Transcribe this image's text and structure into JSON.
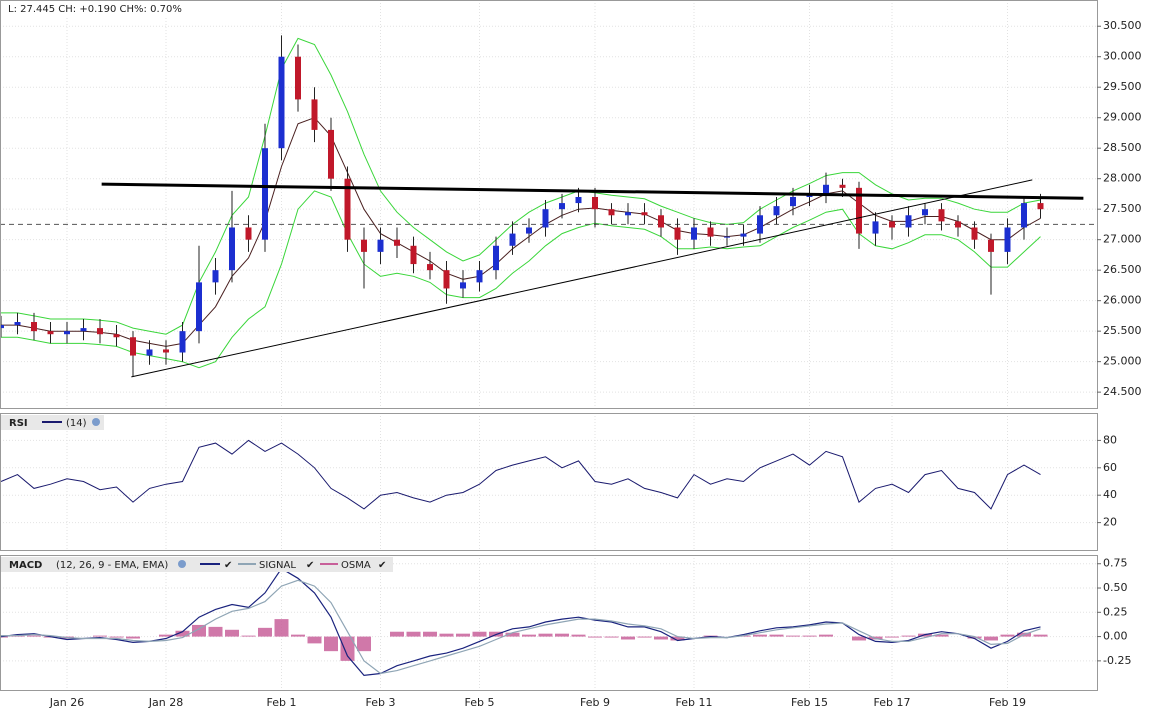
{
  "chart_data": [
    {
      "type": "candlestick",
      "header": "L: 27.445 CH: +0.190 CH%: 0.70%",
      "categories": [
        null,
        null,
        null,
        null,
        "Jan 26",
        null,
        null,
        null,
        null,
        null,
        "Jan 28",
        null,
        null,
        null,
        null,
        null,
        null,
        "Feb 1",
        null,
        null,
        null,
        null,
        null,
        "Feb 3",
        null,
        null,
        null,
        null,
        null,
        "Feb 5",
        null,
        null,
        null,
        null,
        null,
        null,
        "Feb 9",
        null,
        null,
        null,
        null,
        null,
        "Feb 11",
        null,
        null,
        null,
        null,
        null,
        null,
        "Feb 15",
        null,
        null,
        null,
        null,
        "Feb 17",
        null,
        null,
        null,
        null,
        null,
        null,
        "Feb 19",
        null,
        null
      ],
      "open": [
        25.55,
        25.6,
        25.65,
        25.5,
        25.45,
        25.5,
        25.55,
        25.45,
        25.4,
        25.1,
        25.2,
        25.15,
        25.5,
        26.3,
        26.5,
        27.2,
        27.0,
        28.5,
        30.0,
        29.3,
        28.8,
        28.0,
        27.0,
        26.8,
        27.0,
        26.9,
        26.6,
        26.5,
        26.2,
        26.3,
        26.5,
        26.9,
        27.1,
        27.2,
        27.5,
        27.6,
        27.7,
        27.5,
        27.4,
        27.45,
        27.4,
        27.2,
        27.0,
        27.2,
        27.05,
        27.05,
        27.1,
        27.4,
        27.55,
        27.7,
        27.75,
        27.9,
        27.85,
        27.1,
        27.3,
        27.2,
        27.4,
        27.5,
        27.3,
        27.2,
        27.0,
        26.8,
        27.2,
        27.6
      ],
      "high": [
        25.75,
        25.8,
        25.8,
        25.65,
        25.65,
        25.7,
        25.7,
        25.6,
        25.5,
        25.35,
        25.35,
        25.65,
        26.9,
        26.7,
        27.8,
        27.4,
        28.9,
        30.35,
        30.2,
        29.5,
        29.0,
        28.2,
        27.2,
        27.2,
        27.2,
        27.05,
        26.8,
        26.65,
        26.5,
        26.65,
        27.05,
        27.3,
        27.35,
        27.65,
        27.75,
        27.85,
        27.85,
        27.6,
        27.6,
        27.6,
        27.5,
        27.35,
        27.35,
        27.3,
        27.2,
        27.25,
        27.55,
        27.7,
        27.85,
        27.9,
        28.1,
        28.0,
        27.95,
        27.45,
        27.4,
        27.55,
        27.6,
        27.6,
        27.4,
        27.3,
        27.1,
        27.35,
        27.7,
        27.75
      ],
      "low": [
        25.4,
        25.45,
        25.35,
        25.3,
        25.3,
        25.35,
        25.3,
        25.25,
        24.75,
        24.95,
        24.95,
        25.0,
        25.3,
        26.1,
        26.3,
        26.8,
        26.8,
        28.3,
        29.1,
        28.6,
        27.8,
        26.8,
        26.2,
        26.6,
        26.7,
        26.45,
        26.35,
        25.95,
        26.05,
        26.15,
        26.35,
        26.75,
        26.95,
        27.05,
        27.35,
        27.45,
        27.2,
        27.25,
        27.25,
        27.25,
        27.05,
        26.75,
        26.85,
        26.9,
        26.9,
        26.9,
        26.95,
        27.25,
        27.4,
        27.55,
        27.6,
        27.7,
        26.85,
        26.9,
        27.0,
        27.05,
        27.25,
        27.15,
        27.05,
        26.85,
        26.1,
        26.6,
        27.0,
        27.35
      ],
      "close": [
        25.6,
        25.65,
        25.5,
        25.45,
        25.5,
        25.55,
        25.45,
        25.4,
        25.1,
        25.2,
        25.15,
        25.5,
        26.3,
        26.5,
        27.2,
        27.0,
        28.5,
        30.0,
        29.3,
        28.8,
        28.0,
        27.0,
        26.8,
        27.0,
        26.9,
        26.6,
        26.5,
        26.2,
        26.3,
        26.5,
        26.9,
        27.1,
        27.2,
        27.5,
        27.6,
        27.7,
        27.5,
        27.4,
        27.45,
        27.4,
        27.2,
        27.0,
        27.2,
        27.05,
        27.05,
        27.1,
        27.4,
        27.55,
        27.7,
        27.75,
        27.9,
        27.85,
        27.1,
        27.3,
        27.2,
        27.4,
        27.5,
        27.3,
        27.2,
        27.0,
        26.8,
        27.2,
        27.6,
        27.5
      ],
      "up_color": "#1c2fd0",
      "down_color": "#c0182a",
      "overlays": [
        {
          "color": "#3ad63a",
          "values": [
            25.8,
            25.8,
            25.75,
            25.7,
            25.7,
            25.7,
            25.68,
            25.65,
            25.55,
            25.5,
            25.45,
            25.6,
            26.3,
            26.8,
            27.4,
            27.7,
            28.7,
            29.8,
            30.3,
            30.2,
            29.7,
            29.1,
            28.4,
            27.8,
            27.45,
            27.2,
            27.0,
            26.8,
            26.65,
            26.75,
            27.0,
            27.25,
            27.45,
            27.6,
            27.7,
            27.8,
            27.77,
            27.73,
            27.7,
            27.67,
            27.55,
            27.45,
            27.35,
            27.28,
            27.25,
            27.28,
            27.5,
            27.65,
            27.8,
            27.92,
            28.05,
            28.1,
            28.1,
            27.9,
            27.75,
            27.65,
            27.68,
            27.68,
            27.6,
            27.5,
            27.45,
            27.45,
            27.6,
            27.65
          ]
        },
        {
          "color": "#3ad63a",
          "values": [
            25.4,
            25.4,
            25.35,
            25.3,
            25.3,
            25.3,
            25.28,
            25.25,
            25.15,
            25.1,
            25.05,
            25.0,
            24.9,
            25.0,
            25.4,
            25.7,
            25.9,
            26.6,
            27.5,
            27.8,
            27.7,
            27.1,
            26.6,
            26.4,
            26.45,
            26.4,
            26.3,
            26.1,
            26.05,
            26.05,
            26.2,
            26.45,
            26.65,
            26.9,
            27.1,
            27.2,
            27.27,
            27.23,
            27.2,
            27.17,
            27.05,
            26.85,
            26.85,
            26.88,
            26.85,
            26.88,
            26.9,
            27.05,
            27.2,
            27.32,
            27.45,
            27.5,
            27.1,
            26.9,
            26.85,
            26.95,
            27.08,
            27.08,
            27.0,
            26.8,
            26.55,
            26.55,
            26.8,
            27.05
          ]
        },
        {
          "color": "#4a2020",
          "values": [
            25.6,
            25.6,
            25.55,
            25.5,
            25.5,
            25.5,
            25.48,
            25.45,
            25.35,
            25.3,
            25.25,
            25.3,
            25.6,
            25.9,
            26.4,
            26.7,
            27.3,
            28.2,
            28.9,
            29.0,
            28.7,
            28.1,
            27.5,
            27.1,
            26.95,
            26.8,
            26.65,
            26.45,
            26.35,
            26.4,
            26.6,
            26.85,
            27.05,
            27.25,
            27.4,
            27.5,
            27.52,
            27.48,
            27.45,
            27.42,
            27.3,
            27.15,
            27.1,
            27.08,
            27.05,
            27.08,
            27.2,
            27.35,
            27.5,
            27.62,
            27.75,
            27.8,
            27.6,
            27.4,
            27.3,
            27.3,
            27.38,
            27.38,
            27.3,
            27.15,
            27.0,
            27.0,
            27.2,
            27.35
          ]
        }
      ],
      "trendlines": [
        {
          "x": [
            6.1,
            65.6
          ],
          "y": [
            27.91,
            27.68
          ],
          "width": 3
        },
        {
          "x": [
            7.9,
            62.5
          ],
          "y": [
            24.75,
            27.98
          ],
          "width": 1
        }
      ],
      "level": 27.25,
      "ylim": [
        24.24,
        30.93
      ],
      "yticks": [
        {
          "value": 24.5,
          "label": "24.500"
        },
        {
          "value": 25,
          "label": "25.000"
        },
        {
          "value": 25.5,
          "label": "25.500"
        },
        {
          "value": 26,
          "label": "26.000"
        },
        {
          "value": 26.5,
          "label": "26.500"
        },
        {
          "value": 27,
          "label": "27.000"
        },
        {
          "value": 27.5,
          "label": "27.500"
        },
        {
          "value": 28,
          "label": "28.000"
        },
        {
          "value": 28.5,
          "label": "28.500"
        },
        {
          "value": 29,
          "label": "29.000"
        },
        {
          "value": 29.5,
          "label": "29.500"
        },
        {
          "value": 30,
          "label": "30.000"
        },
        {
          "value": 30.5,
          "label": "30.500"
        }
      ],
      "grid": true
    },
    {
      "type": "line",
      "title": "RSI",
      "subtitle": "(14)",
      "series": [
        {
          "color": "#1a1a6e",
          "values": [
            50,
            55,
            45,
            48,
            52,
            50,
            44,
            46,
            35,
            45,
            48,
            50,
            75,
            78,
            70,
            80,
            72,
            78,
            70,
            60,
            45,
            38,
            30,
            40,
            42,
            38,
            35,
            40,
            42,
            48,
            58,
            62,
            65,
            68,
            60,
            65,
            50,
            48,
            52,
            45,
            42,
            38,
            55,
            48,
            52,
            50,
            60,
            65,
            70,
            62,
            72,
            68,
            35,
            45,
            48,
            42,
            55,
            58,
            45,
            42,
            30,
            55,
            62,
            55
          ]
        }
      ],
      "ylim": [
        0,
        100
      ],
      "yticks": [
        20,
        40,
        60,
        80
      ],
      "grid": true
    },
    {
      "type": "macd",
      "title": "MACD",
      "subtitle": "(12, 26, 9 - EMA, EMA)",
      "series": [
        {
          "color": "#1a237e",
          "values": [
            0.0,
            0.02,
            0.03,
            0.0,
            -0.03,
            -0.02,
            -0.01,
            -0.03,
            -0.06,
            -0.05,
            -0.02,
            0.05,
            0.2,
            0.28,
            0.33,
            0.3,
            0.45,
            0.7,
            0.6,
            0.45,
            0.2,
            -0.2,
            -0.4,
            -0.38,
            -0.3,
            -0.25,
            -0.2,
            -0.17,
            -0.12,
            -0.05,
            0.02,
            0.08,
            0.1,
            0.15,
            0.18,
            0.2,
            0.17,
            0.15,
            0.1,
            0.1,
            0.05,
            -0.04,
            -0.02,
            0.0,
            -0.01,
            0.02,
            0.06,
            0.09,
            0.1,
            0.12,
            0.15,
            0.14,
            0.02,
            -0.05,
            -0.06,
            -0.04,
            0.02,
            0.05,
            0.03,
            -0.02,
            -0.12,
            -0.05,
            0.06,
            0.1
          ]
        },
        {
          "name": "SIGNAL",
          "color": "#8fa5b5",
          "values": [
            0.01,
            0.01,
            0.02,
            0.01,
            -0.01,
            -0.02,
            -0.02,
            -0.02,
            -0.04,
            -0.05,
            -0.04,
            -0.01,
            0.08,
            0.18,
            0.26,
            0.29,
            0.36,
            0.52,
            0.58,
            0.52,
            0.35,
            0.05,
            -0.25,
            -0.38,
            -0.35,
            -0.3,
            -0.25,
            -0.2,
            -0.15,
            -0.1,
            -0.03,
            0.04,
            0.08,
            0.12,
            0.15,
            0.18,
            0.18,
            0.16,
            0.13,
            0.11,
            0.08,
            0.0,
            -0.02,
            -0.01,
            -0.01,
            0.01,
            0.04,
            0.07,
            0.09,
            0.11,
            0.13,
            0.14,
            0.06,
            -0.02,
            -0.05,
            -0.05,
            -0.01,
            0.03,
            0.03,
            0.0,
            -0.08,
            -0.07,
            0.02,
            0.08
          ]
        },
        {
          "name": "OSMA",
          "color": "#c8609a",
          "kind": "bar",
          "values": [
            -0.01,
            0.01,
            0.01,
            -0.01,
            -0.02,
            0,
            0.01,
            -0.01,
            -0.02,
            0,
            0.02,
            0.06,
            0.12,
            0.1,
            0.07,
            0.01,
            0.09,
            0.18,
            0.02,
            -0.07,
            -0.15,
            -0.25,
            -0.15,
            0,
            0.05,
            0.05,
            0.05,
            0.03,
            0.03,
            0.05,
            0.05,
            0.04,
            0.02,
            0.03,
            0.03,
            0.02,
            -0.01,
            -0.01,
            -0.03,
            -0.01,
            -0.03,
            -0.04,
            0,
            0.01,
            0,
            0.01,
            0.02,
            0.02,
            0.01,
            0.01,
            0.02,
            0,
            -0.04,
            -0.03,
            -0.01,
            0.01,
            0.03,
            0.02,
            0,
            -0.02,
            -0.04,
            0.02,
            0.04,
            0.02
          ]
        }
      ],
      "ylim": [
        -0.55,
        0.84
      ],
      "yticks": [
        {
          "value": -0.25,
          "label": "-0.25"
        },
        {
          "value": 0,
          "label": "0.00"
        },
        {
          "value": 0.25,
          "label": "0.25"
        },
        {
          "value": 0.5,
          "label": "0.50"
        },
        {
          "value": 0.75,
          "label": "0.75"
        }
      ],
      "grid": true
    }
  ]
}
